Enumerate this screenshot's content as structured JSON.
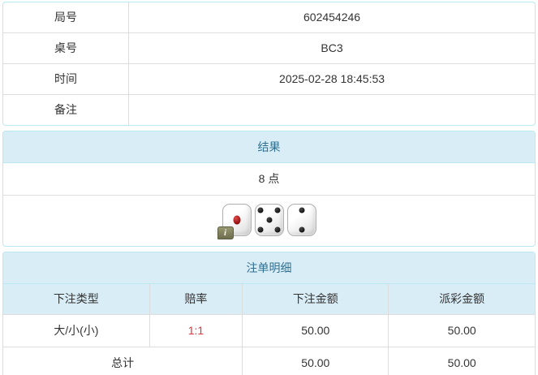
{
  "colors": {
    "panel-border": "#bce8f1",
    "heading-bg": "#d9edf7",
    "heading-text": "#31708f",
    "cell-border": "#dddddd",
    "text": "#333333",
    "odds-red": "#e5333a"
  },
  "info_table": {
    "rows": [
      {
        "label": "局号",
        "value": "602454246"
      },
      {
        "label": "桌号",
        "value": "BC3"
      },
      {
        "label": "时间",
        "value": "2025-02-28 18:45:53"
      },
      {
        "label": "备注",
        "value": ""
      }
    ]
  },
  "result_panel": {
    "title": "结果",
    "points": "8 点",
    "dice": [
      {
        "value": 1,
        "pip_color": "red",
        "info_badge": true,
        "info_badge_label": "i"
      },
      {
        "value": 5,
        "pip_color": "black",
        "info_badge": false
      },
      {
        "value": 2,
        "pip_color": "black",
        "info_badge": false
      }
    ]
  },
  "bets_panel": {
    "title": "注单明细",
    "columns": [
      "下注类型",
      "赔率",
      "下注金额",
      "派彩金额"
    ],
    "rows": [
      {
        "bet_type": "大/小(小)",
        "odds": "1:1",
        "bet_amount": "50.00",
        "payout_amount": "50.00"
      }
    ],
    "total": {
      "label": "总计",
      "bet_amount": "50.00",
      "payout_amount": "50.00"
    }
  }
}
